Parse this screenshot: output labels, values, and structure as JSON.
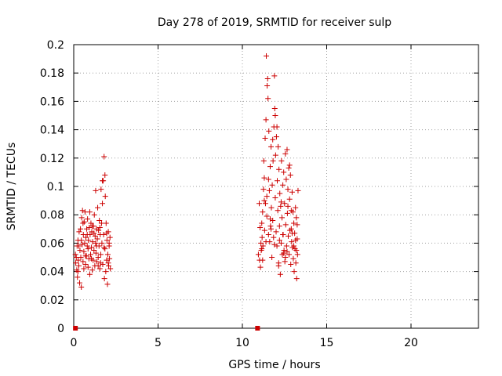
{
  "chart_data": {
    "type": "scatter",
    "title": "Day 278 of 2019, SRMTID for receiver sulp",
    "xlabel": "GPS time / hours",
    "ylabel": "SRMTID / TECUs",
    "xlim": [
      0,
      24
    ],
    "ylim": [
      0,
      0.2
    ],
    "xticks": [
      0,
      5,
      10,
      15,
      20
    ],
    "yticks": [
      0,
      0.02,
      0.04,
      0.06,
      0.08,
      0.1,
      0.12,
      0.14,
      0.16,
      0.18,
      0.2
    ],
    "xtick_labels": [
      "0",
      "5",
      "10",
      "15",
      "20"
    ],
    "ytick_labels": [
      "0",
      "0.02",
      "0.04",
      "0.06",
      "0.08",
      "0.1",
      "0.12",
      "0.14",
      "0.16",
      "0.18",
      "0.2"
    ],
    "grid": true,
    "marker": "+",
    "color": "#cc0000",
    "zero_markers": [
      {
        "x": 0.1,
        "y": 0
      },
      {
        "x": 10.9,
        "y": 0
      }
    ],
    "series": [
      {
        "points": [
          [
            0.1,
            0.052
          ],
          [
            0.12,
            0.046
          ],
          [
            0.15,
            0.05
          ],
          [
            0.18,
            0.041
          ],
          [
            0.2,
            0.058
          ],
          [
            0.22,
            0.036
          ],
          [
            0.25,
            0.062
          ],
          [
            0.27,
            0.048
          ],
          [
            0.3,
            0.044
          ],
          [
            0.32,
            0.068
          ],
          [
            0.35,
            0.032
          ],
          [
            0.37,
            0.055
          ],
          [
            0.4,
            0.07
          ],
          [
            0.42,
            0.05
          ],
          [
            0.45,
            0.029
          ],
          [
            0.47,
            0.078
          ],
          [
            0.5,
            0.059
          ],
          [
            0.52,
            0.083
          ],
          [
            0.55,
            0.047
          ],
          [
            0.57,
            0.066
          ],
          [
            0.6,
            0.054
          ],
          [
            0.62,
            0.075
          ],
          [
            0.65,
            0.06
          ],
          [
            0.67,
            0.082
          ],
          [
            0.7,
            0.045
          ],
          [
            0.72,
            0.064
          ],
          [
            0.75,
            0.051
          ],
          [
            0.77,
            0.07
          ],
          [
            0.8,
            0.058
          ],
          [
            0.82,
            0.077
          ],
          [
            0.85,
            0.043
          ],
          [
            0.87,
            0.062
          ],
          [
            0.9,
            0.049
          ],
          [
            0.92,
            0.071
          ],
          [
            0.95,
            0.038
          ],
          [
            0.97,
            0.066
          ],
          [
            1.0,
            0.052
          ],
          [
            1.02,
            0.074
          ],
          [
            1.05,
            0.057
          ],
          [
            1.07,
            0.068
          ],
          [
            1.1,
            0.041
          ],
          [
            1.12,
            0.061
          ],
          [
            1.15,
            0.048
          ],
          [
            1.17,
            0.072
          ],
          [
            1.2,
            0.055
          ],
          [
            1.22,
            0.08
          ],
          [
            1.25,
            0.044
          ],
          [
            1.27,
            0.065
          ],
          [
            1.3,
            0.097
          ],
          [
            1.32,
            0.053
          ],
          [
            1.35,
            0.07
          ],
          [
            1.37,
            0.047
          ],
          [
            1.4,
            0.063
          ],
          [
            1.42,
            0.085
          ],
          [
            1.45,
            0.05
          ],
          [
            1.47,
            0.069
          ],
          [
            1.5,
            0.058
          ],
          [
            1.52,
            0.076
          ],
          [
            1.55,
            0.042
          ],
          [
            1.57,
            0.066
          ],
          [
            1.6,
            0.052
          ],
          [
            1.62,
            0.098
          ],
          [
            1.65,
            0.074
          ],
          [
            1.67,
            0.06
          ],
          [
            1.7,
            0.088
          ],
          [
            1.72,
            0.045
          ],
          [
            1.75,
            0.104
          ],
          [
            1.77,
            0.066
          ],
          [
            1.8,
            0.121
          ],
          [
            1.82,
            0.035
          ],
          [
            1.85,
            0.056
          ],
          [
            1.87,
            0.093
          ],
          [
            1.9,
            0.04
          ],
          [
            1.92,
            0.074
          ],
          [
            1.95,
            0.048
          ],
          [
            1.97,
            0.062
          ],
          [
            2.0,
            0.031
          ],
          [
            2.02,
            0.052
          ],
          [
            2.05,
            0.068
          ],
          [
            2.07,
            0.044
          ],
          [
            2.1,
            0.058
          ],
          [
            2.12,
            0.049
          ],
          [
            2.15,
            0.064
          ],
          [
            2.17,
            0.042
          ],
          [
            0.3,
            0.058
          ],
          [
            0.55,
            0.074
          ],
          [
            0.8,
            0.066
          ],
          [
            1.05,
            0.049
          ],
          [
            1.3,
            0.06
          ],
          [
            1.55,
            0.071
          ],
          [
            1.8,
            0.057
          ],
          [
            2.05,
            0.046
          ],
          [
            0.45,
            0.062
          ],
          [
            0.7,
            0.051
          ],
          [
            0.95,
            0.082
          ],
          [
            1.2,
            0.067
          ],
          [
            1.45,
            0.044
          ],
          [
            1.7,
            0.104
          ],
          [
            1.95,
            0.067
          ],
          [
            0.25,
            0.04
          ],
          [
            0.6,
            0.042
          ],
          [
            0.85,
            0.056
          ],
          [
            1.1,
            0.072
          ],
          [
            1.35,
            0.058
          ],
          [
            1.6,
            0.046
          ],
          [
            1.85,
            0.108
          ],
          [
            2.1,
            0.06
          ]
        ]
      },
      {
        "points": [
          [
            10.95,
            0.052
          ],
          [
            11.0,
            0.088
          ],
          [
            11.02,
            0.048
          ],
          [
            11.05,
            0.071
          ],
          [
            11.07,
            0.043
          ],
          [
            11.1,
            0.06
          ],
          [
            11.12,
            0.055
          ],
          [
            11.15,
            0.074
          ],
          [
            11.17,
            0.064
          ],
          [
            11.2,
            0.082
          ],
          [
            11.22,
            0.058
          ],
          [
            11.25,
            0.098
          ],
          [
            11.27,
            0.118
          ],
          [
            11.3,
            0.106
          ],
          [
            11.32,
            0.069
          ],
          [
            11.35,
            0.134
          ],
          [
            11.37,
            0.088
          ],
          [
            11.4,
            0.147
          ],
          [
            11.42,
            0.192
          ],
          [
            11.45,
            0.079
          ],
          [
            11.47,
            0.171
          ],
          [
            11.5,
            0.176
          ],
          [
            11.52,
            0.162
          ],
          [
            11.55,
            0.066
          ],
          [
            11.57,
            0.139
          ],
          [
            11.6,
            0.097
          ],
          [
            11.62,
            0.061
          ],
          [
            11.65,
            0.114
          ],
          [
            11.67,
            0.072
          ],
          [
            11.7,
            0.128
          ],
          [
            11.72,
            0.085
          ],
          [
            11.75,
            0.05
          ],
          [
            11.77,
            0.101
          ],
          [
            11.8,
            0.076
          ],
          [
            11.82,
            0.118
          ],
          [
            11.85,
            0.064
          ],
          [
            11.87,
            0.142
          ],
          [
            11.9,
            0.178
          ],
          [
            11.92,
            0.155
          ],
          [
            11.95,
            0.092
          ],
          [
            11.97,
            0.122
          ],
          [
            12.0,
            0.068
          ],
          [
            12.02,
            0.135
          ],
          [
            12.05,
            0.058
          ],
          [
            12.07,
            0.104
          ],
          [
            12.1,
            0.083
          ],
          [
            12.12,
            0.128
          ],
          [
            12.15,
            0.046
          ],
          [
            12.17,
            0.112
          ],
          [
            12.2,
            0.072
          ],
          [
            12.22,
            0.095
          ],
          [
            12.25,
            0.038
          ],
          [
            12.27,
            0.086
          ],
          [
            12.3,
            0.06
          ],
          [
            12.32,
            0.118
          ],
          [
            12.35,
            0.078
          ],
          [
            12.37,
            0.052
          ],
          [
            12.4,
            0.101
          ],
          [
            12.42,
            0.066
          ],
          [
            12.45,
            0.11
          ],
          [
            12.47,
            0.055
          ],
          [
            12.5,
            0.088
          ],
          [
            12.52,
            0.047
          ],
          [
            12.55,
            0.123
          ],
          [
            12.57,
            0.073
          ],
          [
            12.6,
            0.105
          ],
          [
            12.62,
            0.058
          ],
          [
            12.65,
            0.126
          ],
          [
            12.67,
            0.081
          ],
          [
            12.7,
            0.098
          ],
          [
            12.72,
            0.065
          ],
          [
            12.75,
            0.113
          ],
          [
            12.77,
            0.052
          ],
          [
            12.8,
            0.091
          ],
          [
            12.82,
            0.069
          ],
          [
            12.85,
            0.108
          ],
          [
            12.87,
            0.045
          ],
          [
            12.9,
            0.083
          ],
          [
            12.92,
            0.061
          ],
          [
            12.95,
            0.096
          ],
          [
            12.97,
            0.057
          ],
          [
            13.0,
            0.082
          ],
          [
            13.02,
            0.049
          ],
          [
            13.05,
            0.074
          ],
          [
            13.07,
            0.04
          ],
          [
            13.1,
            0.067
          ],
          [
            13.12,
            0.056
          ],
          [
            13.15,
            0.085
          ],
          [
            13.17,
            0.046
          ],
          [
            13.2,
            0.078
          ],
          [
            13.22,
            0.035
          ],
          [
            13.25,
            0.063
          ],
          [
            13.27,
            0.052
          ],
          [
            13.3,
            0.097
          ],
          [
            11.15,
            0.056
          ],
          [
            11.4,
            0.061
          ],
          [
            11.65,
            0.077
          ],
          [
            11.9,
            0.059
          ],
          [
            12.15,
            0.044
          ],
          [
            12.4,
            0.066
          ],
          [
            12.65,
            0.054
          ],
          [
            12.9,
            0.07
          ],
          [
            13.15,
            0.062
          ],
          [
            11.3,
            0.09
          ],
          [
            11.55,
            0.105
          ],
          [
            11.8,
            0.133
          ],
          [
            12.05,
            0.142
          ],
          [
            12.3,
            0.089
          ],
          [
            12.55,
            0.05
          ],
          [
            12.8,
            0.115
          ],
          [
            13.05,
            0.058
          ],
          [
            13.25,
            0.073
          ],
          [
            11.2,
            0.048
          ],
          [
            11.45,
            0.093
          ],
          [
            11.7,
            0.07
          ],
          [
            11.95,
            0.15
          ],
          [
            12.2,
            0.062
          ],
          [
            12.45,
            0.053
          ],
          [
            12.7,
            0.086
          ],
          [
            12.95,
            0.067
          ],
          [
            13.2,
            0.055
          ]
        ]
      }
    ]
  }
}
